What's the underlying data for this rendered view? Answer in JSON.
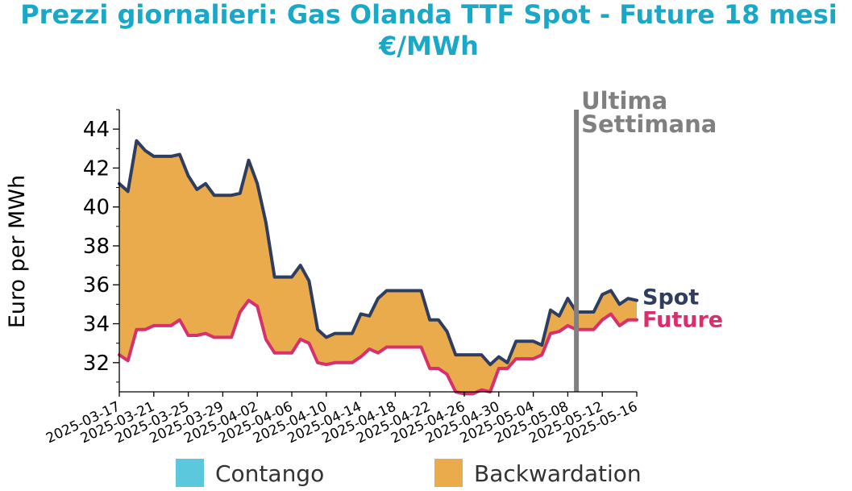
{
  "chart_data": {
    "type": "line",
    "title": "Prezzi giornalieri: Gas Olanda TTF Spot - Future 18 mesi",
    "subtitle": "€/MWh",
    "xlabel": "",
    "ylabel": "Euro per MWh",
    "ylim": [
      30.5,
      45
    ],
    "yticks": [
      32,
      34,
      36,
      38,
      40,
      42,
      44
    ],
    "x_start": "2025-03-17",
    "x_end": "2025-05-16",
    "x_tick_labels": [
      "2025-03-17",
      "2025-03-21",
      "2025-03-25",
      "2025-03-29",
      "2025-04-02",
      "2025-04-06",
      "2025-04-10",
      "2025-04-14",
      "2025-04-18",
      "2025-04-22",
      "2025-04-26",
      "2025-04-30",
      "2025-05-04",
      "2025-05-08",
      "2025-05-12",
      "2025-05-16"
    ],
    "x": [
      "2025-03-17",
      "2025-03-18",
      "2025-03-19",
      "2025-03-20",
      "2025-03-21",
      "2025-03-22",
      "2025-03-23",
      "2025-03-24",
      "2025-03-25",
      "2025-03-26",
      "2025-03-27",
      "2025-03-28",
      "2025-03-29",
      "2025-03-30",
      "2025-03-31",
      "2025-04-01",
      "2025-04-02",
      "2025-04-03",
      "2025-04-04",
      "2025-04-05",
      "2025-04-06",
      "2025-04-07",
      "2025-04-08",
      "2025-04-09",
      "2025-04-10",
      "2025-04-11",
      "2025-04-12",
      "2025-04-13",
      "2025-04-14",
      "2025-04-15",
      "2025-04-16",
      "2025-04-17",
      "2025-04-18",
      "2025-04-19",
      "2025-04-20",
      "2025-04-21",
      "2025-04-22",
      "2025-04-23",
      "2025-04-24",
      "2025-04-25",
      "2025-04-26",
      "2025-04-27",
      "2025-04-28",
      "2025-04-29",
      "2025-04-30",
      "2025-05-01",
      "2025-05-02",
      "2025-05-03",
      "2025-05-04",
      "2025-05-05",
      "2025-05-06",
      "2025-05-07",
      "2025-05-08",
      "2025-05-09",
      "2025-05-10",
      "2025-05-11",
      "2025-05-12",
      "2025-05-13",
      "2025-05-14",
      "2025-05-15",
      "2025-05-16"
    ],
    "series": [
      {
        "name": "Spot",
        "color": "#2f3e5f",
        "values": [
          41.2,
          40.8,
          43.4,
          42.9,
          42.6,
          42.6,
          42.6,
          42.7,
          41.6,
          40.9,
          41.2,
          40.6,
          40.6,
          40.6,
          40.7,
          42.4,
          41.2,
          39.2,
          36.4,
          36.4,
          36.4,
          37.0,
          36.2,
          33.7,
          33.3,
          33.5,
          33.5,
          33.5,
          34.5,
          34.4,
          35.3,
          35.7,
          35.7,
          35.7,
          35.7,
          35.7,
          34.2,
          34.2,
          33.6,
          32.4,
          32.4,
          32.4,
          32.4,
          31.9,
          32.3,
          32.0,
          33.1,
          33.1,
          33.1,
          32.9,
          34.7,
          34.4,
          35.3,
          34.6,
          34.6,
          34.6,
          35.5,
          35.7,
          35.0,
          35.3,
          35.2
        ]
      },
      {
        "name": "Future",
        "color": "#d6306d",
        "values": [
          32.4,
          32.1,
          33.7,
          33.7,
          33.9,
          33.9,
          33.9,
          34.2,
          33.4,
          33.4,
          33.5,
          33.3,
          33.3,
          33.3,
          34.6,
          35.2,
          34.9,
          33.2,
          32.5,
          32.5,
          32.5,
          33.2,
          33.0,
          32.0,
          31.9,
          32.0,
          32.0,
          32.0,
          32.3,
          32.7,
          32.5,
          32.8,
          32.8,
          32.8,
          32.8,
          32.8,
          31.7,
          31.7,
          31.4,
          30.5,
          30.4,
          30.4,
          30.6,
          30.5,
          31.7,
          31.7,
          32.2,
          32.2,
          32.2,
          32.4,
          33.5,
          33.6,
          33.9,
          33.7,
          33.7,
          33.7,
          34.2,
          34.5,
          33.9,
          34.2,
          34.2
        ]
      }
    ],
    "fill_colors": {
      "contango": "#5bc8dd",
      "backwardation": "#eaab4c"
    },
    "legend": {
      "placement": "bottom",
      "items": [
        {
          "label": "Contango",
          "color": "#5bc8dd"
        },
        {
          "label": "Backwardation",
          "color": "#eaab4c"
        }
      ]
    },
    "annotation": {
      "text_line1": "Ultima",
      "text_line2": "Settimana",
      "at_date": "2025-05-09",
      "color": "#808080"
    },
    "title_color": "#1aa8c8",
    "grid": false
  }
}
